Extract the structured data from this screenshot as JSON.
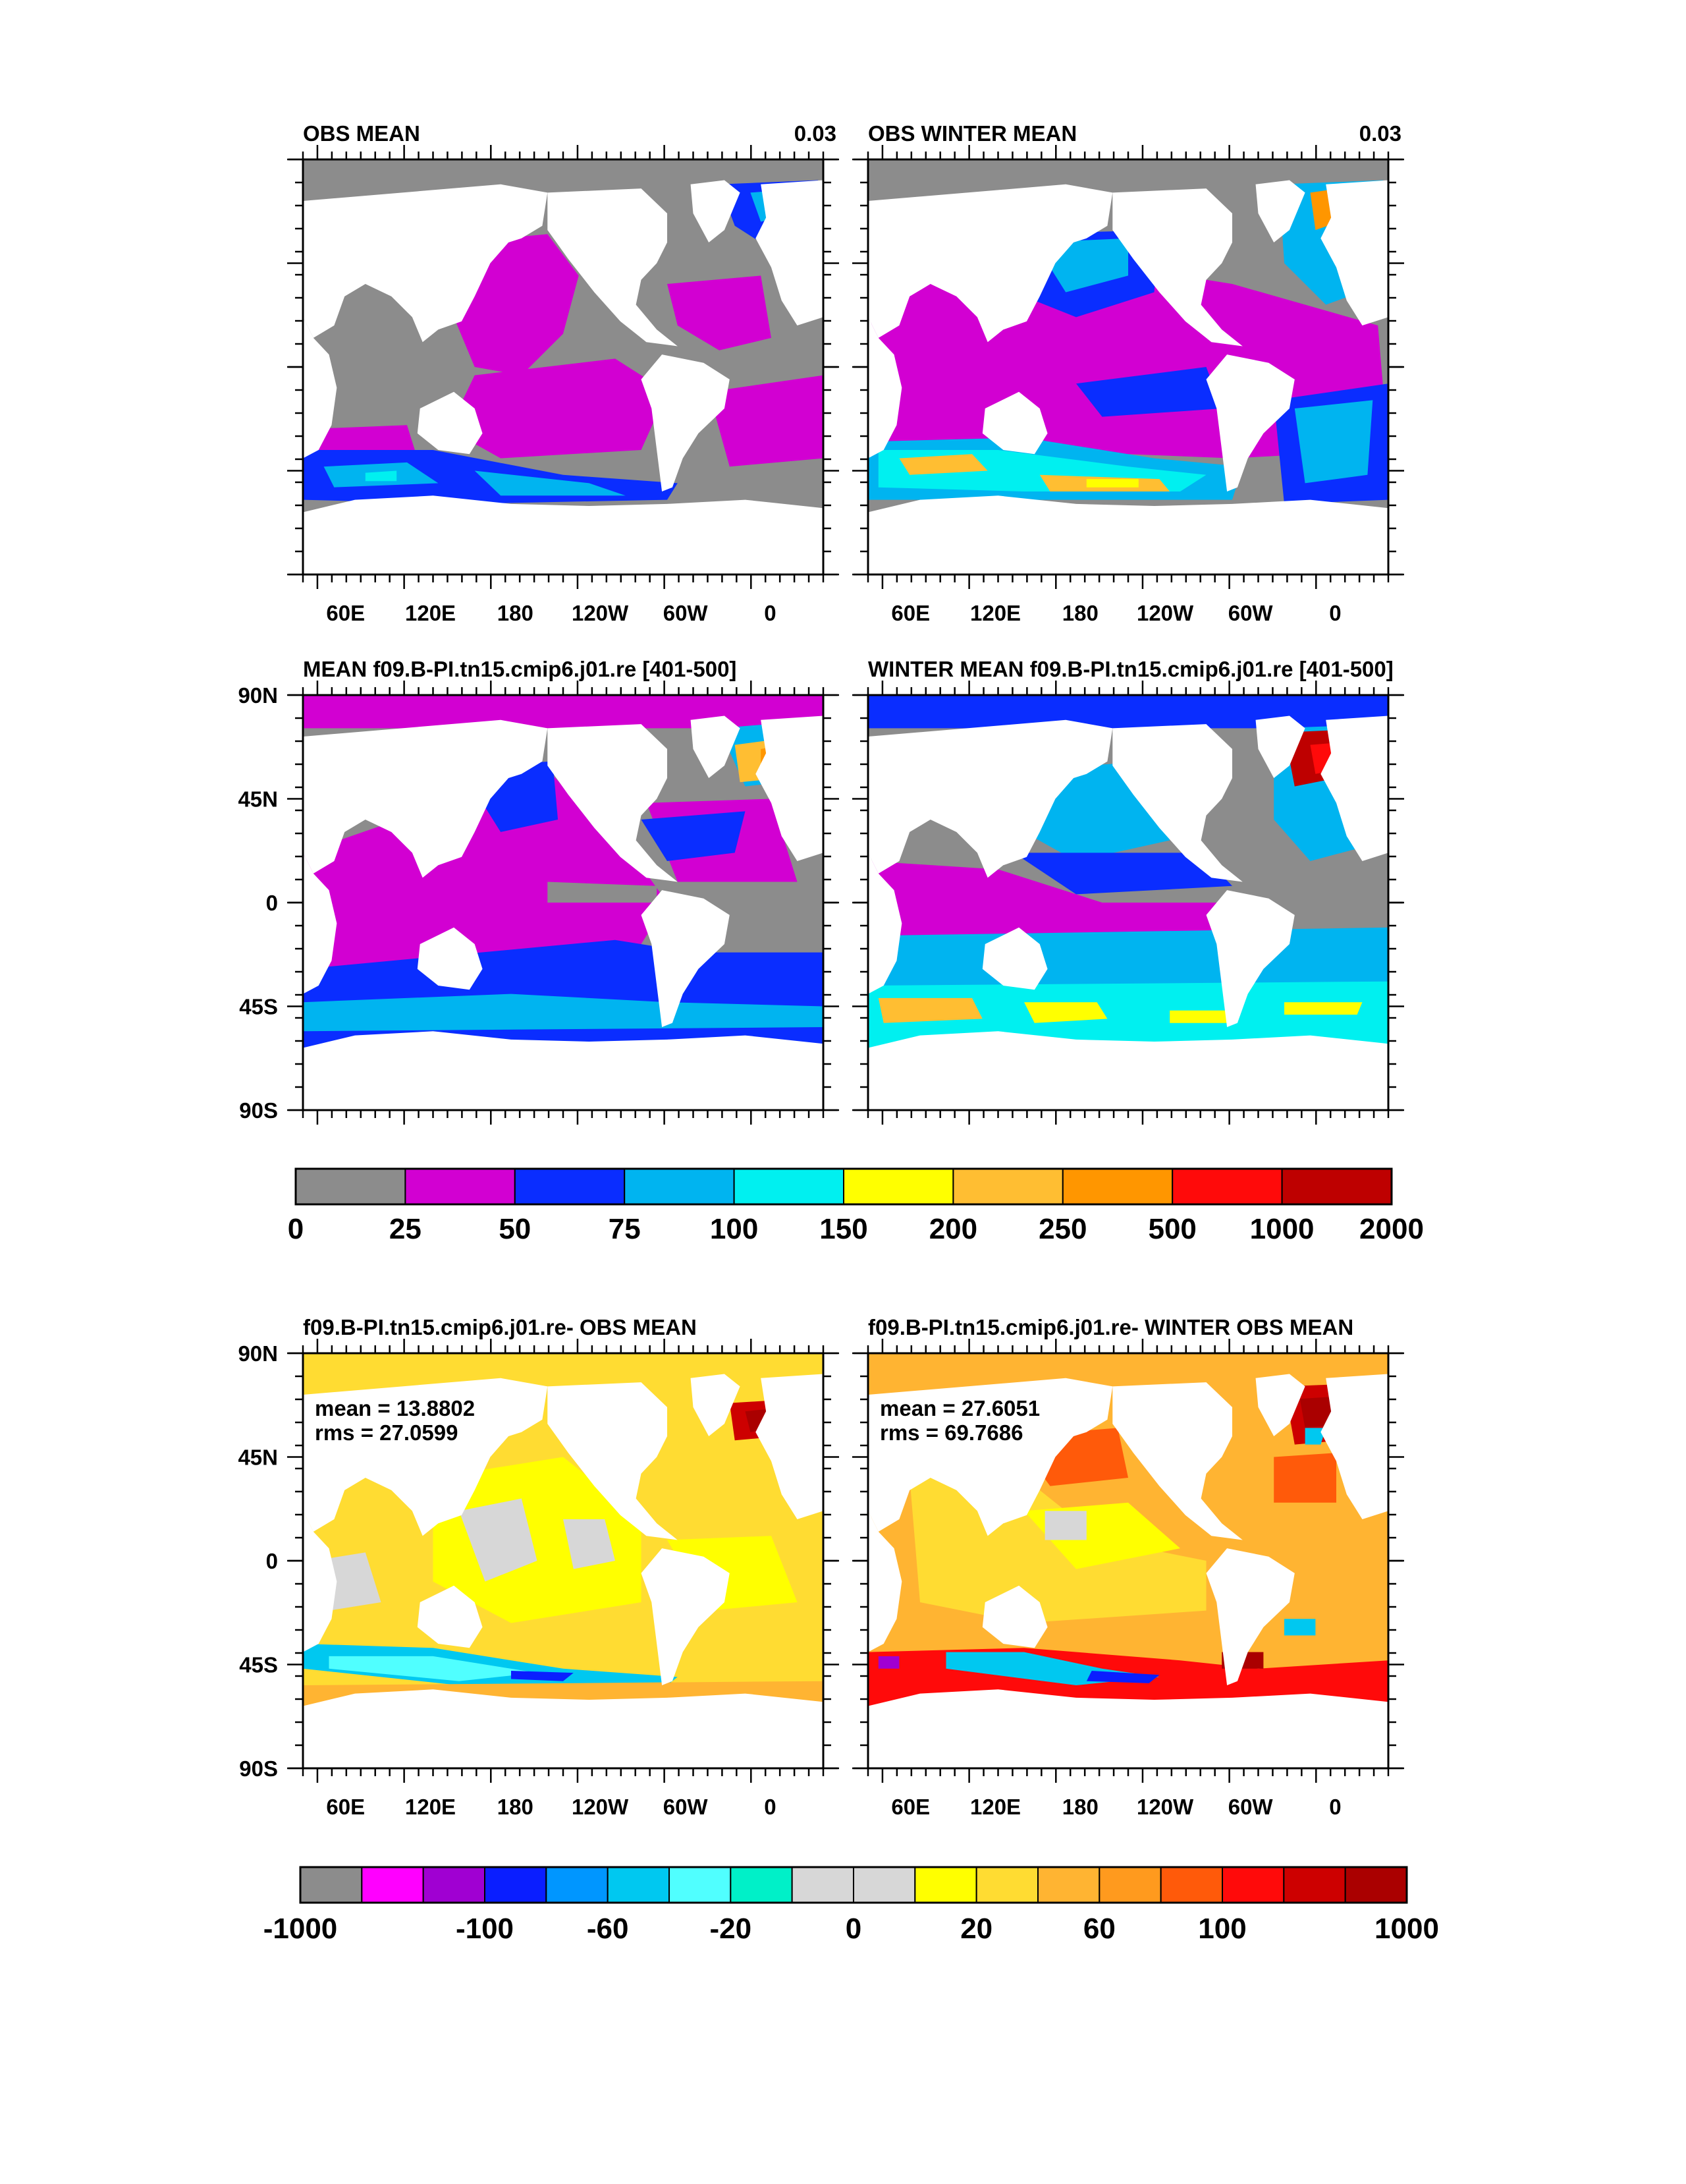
{
  "panels": [
    {
      "id": "obs-mean",
      "title": "OBS MEAN",
      "right_label": "0.03",
      "scale": "mld",
      "ylabels": [],
      "xlabels": [
        "60E",
        "120E",
        "180",
        "120W",
        "60W",
        "0"
      ],
      "stats": []
    },
    {
      "id": "obs-winter-mean",
      "title": "OBS WINTER MEAN",
      "right_label": "0.03",
      "scale": "mld",
      "ylabels": [],
      "xlabels": [
        "60E",
        "120E",
        "180",
        "120W",
        "60W",
        "0"
      ],
      "stats": []
    },
    {
      "id": "model-mean",
      "title": "MEAN f09.B-PI.tn15.cmip6.j01.re [401-500]",
      "right_label": "",
      "scale": "mld",
      "ylabels": [
        "90N",
        "45N",
        "0",
        "45S",
        "90S"
      ],
      "xlabels": [],
      "stats": []
    },
    {
      "id": "model-winter-mean",
      "title": "WINTER MEAN f09.B-PI.tn15.cmip6.j01.re [401-500]",
      "right_label": "",
      "scale": "mld",
      "ylabels": [],
      "xlabels": [],
      "stats": []
    },
    {
      "id": "diff-mean",
      "title": "f09.B-PI.tn15.cmip6.j01.re- OBS MEAN",
      "right_label": "",
      "scale": "diff",
      "ylabels": [
        "90N",
        "45N",
        "0",
        "45S",
        "90S"
      ],
      "xlabels": [
        "60E",
        "120E",
        "180",
        "120W",
        "60W",
        "0"
      ],
      "stats": [
        "mean = 13.8802",
        "rms = 27.0599"
      ]
    },
    {
      "id": "diff-winter-mean",
      "title": "f09.B-PI.tn15.cmip6.j01.re- WINTER OBS MEAN",
      "right_label": "",
      "scale": "diff",
      "ylabels": [],
      "xlabels": [
        "60E",
        "120E",
        "180",
        "120W",
        "60W",
        "0"
      ],
      "stats": [
        "mean = 27.6051",
        "rms = 69.7686"
      ]
    }
  ],
  "colorbars": {
    "mld": {
      "colors": [
        "#8c8c8c",
        "#d200d2",
        "#0a2dff",
        "#00b4f0",
        "#00f0f0",
        "#ffff00",
        "#ffbe32",
        "#ff9600",
        "#ff0a0a",
        "#be0000"
      ],
      "labels": [
        "0",
        "25",
        "50",
        "75",
        "100",
        "150",
        "200",
        "250",
        "500",
        "1000",
        "2000"
      ]
    },
    "diff": {
      "colors": [
        "#8c8c8c",
        "#ff00ff",
        "#a000d2",
        "#0a1eff",
        "#0096ff",
        "#00c8f0",
        "#50ffff",
        "#00f0c8",
        "#d7d7d7",
        "#d7d7d7",
        "#ffff00",
        "#ffdc32",
        "#ffb432",
        "#ff9a1e",
        "#ff5a0a",
        "#ff0a0a",
        "#cd0000",
        "#aa0000"
      ],
      "labels": [
        "-1000",
        "-100",
        "-60",
        "-20",
        "0",
        "20",
        "60",
        "100",
        "1000"
      ]
    }
  }
}
